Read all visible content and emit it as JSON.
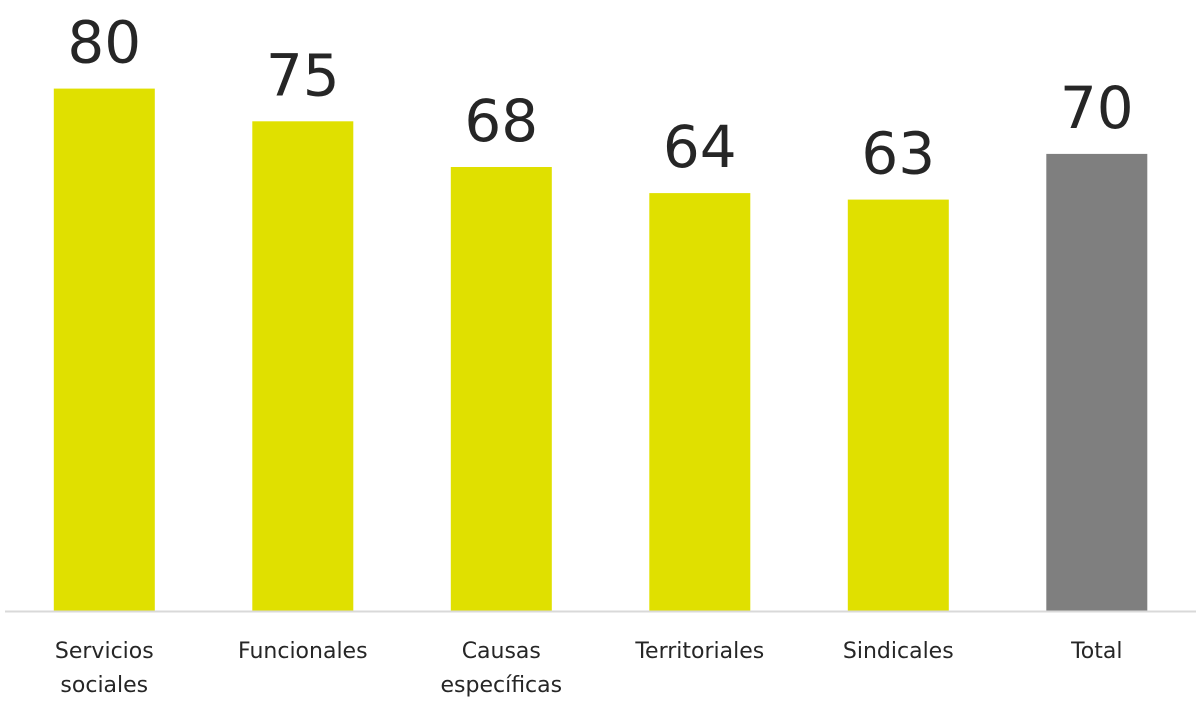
{
  "chart_data": {
    "type": "bar",
    "categories": [
      [
        "Servicios",
        "sociales"
      ],
      [
        "Funcionales"
      ],
      [
        "Causas",
        "específicas"
      ],
      [
        "Territoriales"
      ],
      [
        "Sindicales"
      ],
      [
        "Total"
      ]
    ],
    "values": [
      80,
      75,
      68,
      64,
      63,
      70
    ],
    "data_labels": [
      "80",
      "75",
      "68",
      "64",
      "63",
      "70"
    ],
    "colors": [
      "#e0e000",
      "#e0e000",
      "#e0e000",
      "#e0e000",
      "#e0e000",
      "#7f7f7f"
    ],
    "title": "",
    "xlabel": "",
    "ylabel": "",
    "ylim": [
      0,
      80
    ],
    "grid": false,
    "legend": "none",
    "axis_color": "#d9d9d9",
    "label_color": "#262626"
  }
}
